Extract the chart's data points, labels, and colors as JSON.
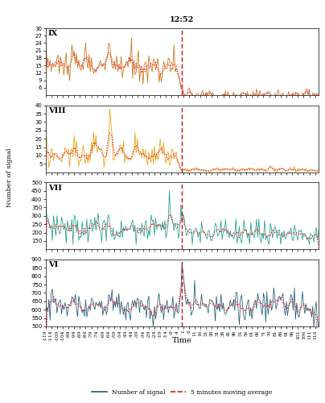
{
  "title_line": "12:52",
  "subplot_labels": [
    "IX",
    "VIII",
    "VII",
    "VI"
  ],
  "colors": {
    "IX": "#C87010",
    "VIII": "#E8A010",
    "VII": "#1A9E90",
    "VI": "#1A5878",
    "ma": "#EE1111",
    "vline": "#CC1111"
  },
  "ylims": {
    "IX": [
      3,
      30
    ],
    "VIII": [
      0,
      40
    ],
    "VII": [
      100,
      500
    ],
    "VI": [
      500,
      900
    ]
  },
  "yticks": {
    "IX": [
      6,
      9,
      12,
      15,
      18,
      21,
      24,
      27,
      30
    ],
    "VIII": [
      5,
      10,
      15,
      20,
      25,
      30,
      35,
      40
    ],
    "VII": [
      150,
      200,
      250,
      300,
      350,
      400,
      450,
      500
    ],
    "VI": [
      500,
      550,
      600,
      650,
      700,
      750,
      800,
      850,
      900
    ]
  },
  "ylabel": "Number of signal",
  "xlabel": "Time",
  "legend_signal": "Number of signal",
  "legend_ma": "5 minutes moving average",
  "vline_x": 0
}
